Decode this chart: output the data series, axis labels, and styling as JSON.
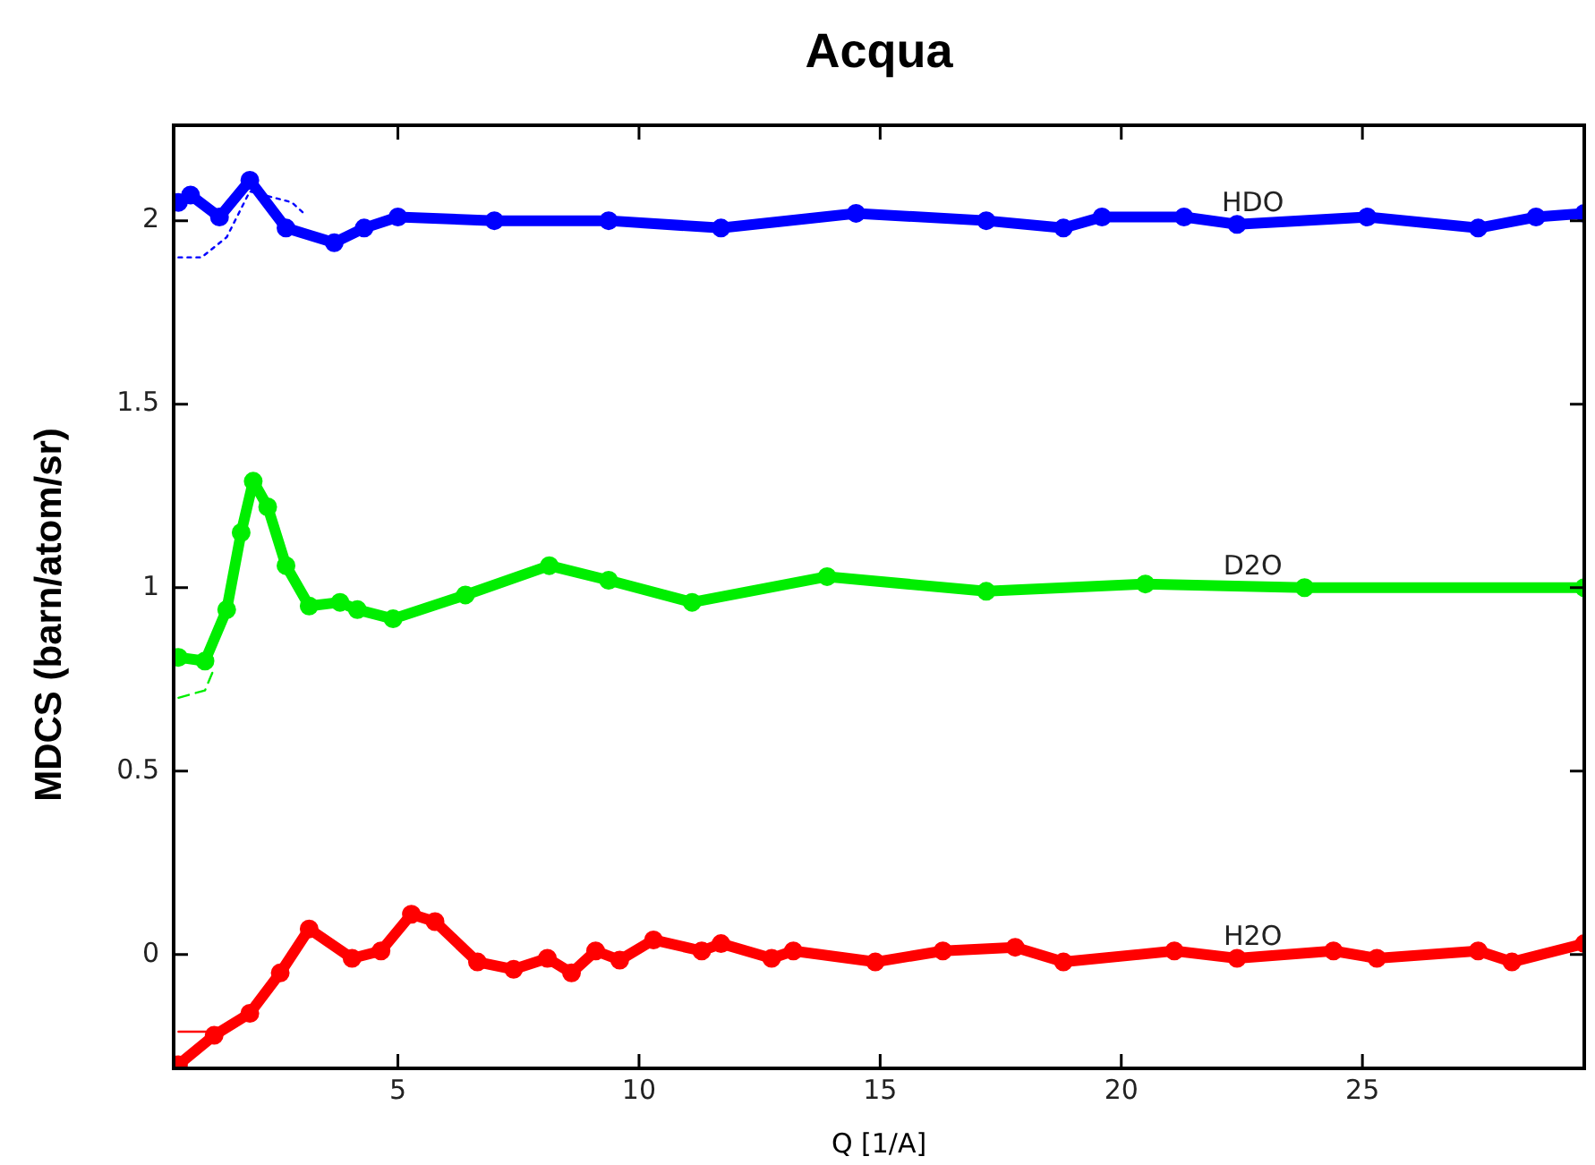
{
  "chart_data": {
    "type": "line",
    "title": "Acqua",
    "xlabel": "Q [1/A]",
    "ylabel": "MDCS (barn/atom/sr)",
    "xlim": [
      0.35,
      29.6
    ],
    "xticks": [
      5,
      10,
      15,
      20,
      25
    ],
    "ylim": [
      -0.31,
      2.26
    ],
    "yticks": [
      0,
      0.5,
      1,
      1.5,
      2
    ],
    "grid": false,
    "legend": false,
    "series": [
      {
        "name": "HDO",
        "color": "#0000ff",
        "marker": "circle",
        "x": [
          0.45,
          0.7,
          1.3,
          1.93,
          2.68,
          3.68,
          4.3,
          5.0,
          7.0,
          9.37,
          11.7,
          14.5,
          17.2,
          18.8,
          19.6,
          21.3,
          22.4,
          25.1,
          27.4,
          28.6,
          29.6
        ],
        "values": [
          2.05,
          2.07,
          2.01,
          2.11,
          1.98,
          1.94,
          1.98,
          2.01,
          2.0,
          2.0,
          1.98,
          2.02,
          2.0,
          1.98,
          2.01,
          2.01,
          1.99,
          2.01,
          1.98,
          2.01,
          2.02
        ]
      },
      {
        "name": "D2O",
        "color": "#00ee00",
        "marker": "circle",
        "x": [
          0.45,
          1.0,
          1.45,
          1.75,
          2.0,
          2.3,
          2.68,
          3.16,
          3.8,
          4.16,
          4.9,
          6.4,
          8.14,
          9.37,
          11.1,
          13.9,
          17.2,
          20.5,
          23.8,
          29.6
        ],
        "values": [
          0.81,
          0.8,
          0.94,
          1.15,
          1.29,
          1.22,
          1.06,
          0.95,
          0.96,
          0.94,
          0.915,
          0.98,
          1.06,
          1.02,
          0.96,
          1.03,
          0.99,
          1.01,
          1.0,
          1.0
        ]
      },
      {
        "name": "H2O",
        "color": "#ff0000",
        "marker": "circle",
        "x": [
          0.45,
          1.19,
          1.93,
          2.56,
          3.16,
          4.05,
          4.65,
          5.28,
          5.77,
          6.65,
          7.4,
          8.1,
          8.6,
          9.1,
          9.6,
          10.3,
          11.3,
          11.7,
          12.75,
          13.2,
          14.9,
          16.3,
          17.8,
          18.8,
          21.1,
          22.4,
          24.4,
          25.3,
          27.4,
          28.1,
          29.6
        ],
        "values": [
          -0.3,
          -0.22,
          -0.16,
          -0.05,
          0.07,
          -0.01,
          0.01,
          0.11,
          0.09,
          -0.02,
          -0.04,
          -0.01,
          -0.05,
          0.01,
          -0.015,
          0.04,
          0.01,
          0.03,
          -0.01,
          0.01,
          -0.02,
          0.01,
          0.02,
          -0.02,
          0.01,
          -0.01,
          0.01,
          -0.01,
          0.01,
          -0.02,
          0.03
        ]
      },
      {
        "color": "#0000ff",
        "marker": "none",
        "line_style": "dotted",
        "x": [
          0.45,
          0.93,
          1.45,
          1.93,
          2.8,
          3.05
        ],
        "values": [
          1.9,
          1.9,
          1.955,
          2.08,
          2.05,
          2.02
        ]
      },
      {
        "color": "#00ee00",
        "marker": "none",
        "line_style": "dashed",
        "x": [
          0.45,
          1.0,
          1.19
        ],
        "values": [
          0.7,
          0.72,
          0.78
        ]
      },
      {
        "color": "#ff0000",
        "marker": "none",
        "line_style": "solid",
        "x": [
          0.45,
          1.1
        ],
        "values": [
          -0.21,
          -0.21
        ]
      }
    ]
  }
}
